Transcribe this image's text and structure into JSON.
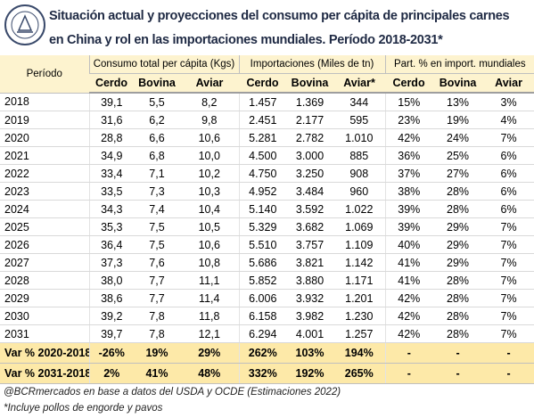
{
  "header": {
    "title_lines": [
      "Situación actual y proyecciones del consumo per cápita de principales carnes",
      "en China y rol en las importaciones mundiales. Período 2018-2031*"
    ]
  },
  "table": {
    "period_header": "Período",
    "groups": [
      "Consumo total per cápita (Kgs)",
      "Importaciones (Miles de tn)",
      "Part. % en import. mundiales"
    ],
    "subheaders": [
      "Cerdo",
      "Bovina",
      "Aviar",
      "Cerdo",
      "Bovina",
      "Aviar*",
      "Cerdo",
      "Bovina",
      "Aviar"
    ],
    "rows": [
      [
        "2018",
        "39,1",
        "5,5",
        "8,2",
        "1.457",
        "1.369",
        "344",
        "15%",
        "13%",
        "3%"
      ],
      [
        "2019",
        "31,6",
        "6,2",
        "9,8",
        "2.451",
        "2.177",
        "595",
        "23%",
        "19%",
        "4%"
      ],
      [
        "2020",
        "28,8",
        "6,6",
        "10,6",
        "5.281",
        "2.782",
        "1.010",
        "42%",
        "24%",
        "7%"
      ],
      [
        "2021",
        "34,9",
        "6,8",
        "10,0",
        "4.500",
        "3.000",
        "885",
        "36%",
        "25%",
        "6%"
      ],
      [
        "2022",
        "33,4",
        "7,1",
        "10,2",
        "4.750",
        "3.250",
        "908",
        "37%",
        "27%",
        "6%"
      ],
      [
        "2023",
        "33,5",
        "7,3",
        "10,3",
        "4.952",
        "3.484",
        "960",
        "38%",
        "28%",
        "6%"
      ],
      [
        "2024",
        "34,3",
        "7,4",
        "10,4",
        "5.140",
        "3.592",
        "1.022",
        "39%",
        "28%",
        "6%"
      ],
      [
        "2025",
        "35,3",
        "7,5",
        "10,5",
        "5.329",
        "3.682",
        "1.069",
        "39%",
        "29%",
        "7%"
      ],
      [
        "2026",
        "36,4",
        "7,5",
        "10,6",
        "5.510",
        "3.757",
        "1.109",
        "40%",
        "29%",
        "7%"
      ],
      [
        "2027",
        "37,3",
        "7,6",
        "10,8",
        "5.686",
        "3.821",
        "1.142",
        "41%",
        "29%",
        "7%"
      ],
      [
        "2028",
        "38,0",
        "7,7",
        "11,1",
        "5.852",
        "3.880",
        "1.171",
        "41%",
        "28%",
        "7%"
      ],
      [
        "2029",
        "38,6",
        "7,7",
        "11,4",
        "6.006",
        "3.932",
        "1.201",
        "42%",
        "28%",
        "7%"
      ],
      [
        "2030",
        "39,2",
        "7,8",
        "11,8",
        "6.158",
        "3.982",
        "1.230",
        "42%",
        "28%",
        "7%"
      ],
      [
        "2031",
        "39,7",
        "7,8",
        "12,1",
        "6.294",
        "4.001",
        "1.257",
        "42%",
        "28%",
        "7%"
      ]
    ],
    "variation_rows": [
      [
        "Var % 2020-2018",
        "-26%",
        "19%",
        "29%",
        "262%",
        "103%",
        "194%",
        "-",
        "-",
        "-"
      ],
      [
        "Var % 2031-2018",
        "2%",
        "41%",
        "48%",
        "332%",
        "192%",
        "265%",
        "-",
        "-",
        "-"
      ]
    ]
  },
  "notes": [
    "@BCRmercados en base a datos del USDA y OCDE (Estimaciones 2022)",
    "*Incluye pollos de engorde y pavos"
  ]
}
